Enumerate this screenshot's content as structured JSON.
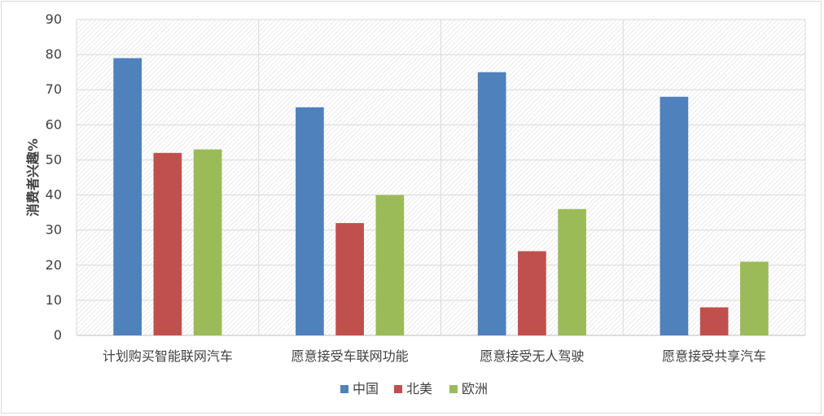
{
  "chart_data": {
    "type": "bar",
    "title": "",
    "xlabel": "",
    "ylabel": "消费者兴趣%",
    "ylim": [
      0,
      90
    ],
    "ytick_step": 10,
    "categories": [
      "计划购买智能联网汽车",
      "愿意接受车联网功能",
      "愿意接受无人驾驶",
      "愿意接受共享汽车"
    ],
    "series": [
      {
        "name": "中国",
        "color": "#4f81bd",
        "values": [
          79,
          65,
          75,
          68
        ]
      },
      {
        "name": "北美",
        "color": "#c0504d",
        "values": [
          52,
          32,
          24,
          8
        ]
      },
      {
        "name": "欧洲",
        "color": "#9bbb59",
        "values": [
          53,
          40,
          36,
          21
        ]
      }
    ],
    "grid": true,
    "legend_position": "bottom"
  }
}
